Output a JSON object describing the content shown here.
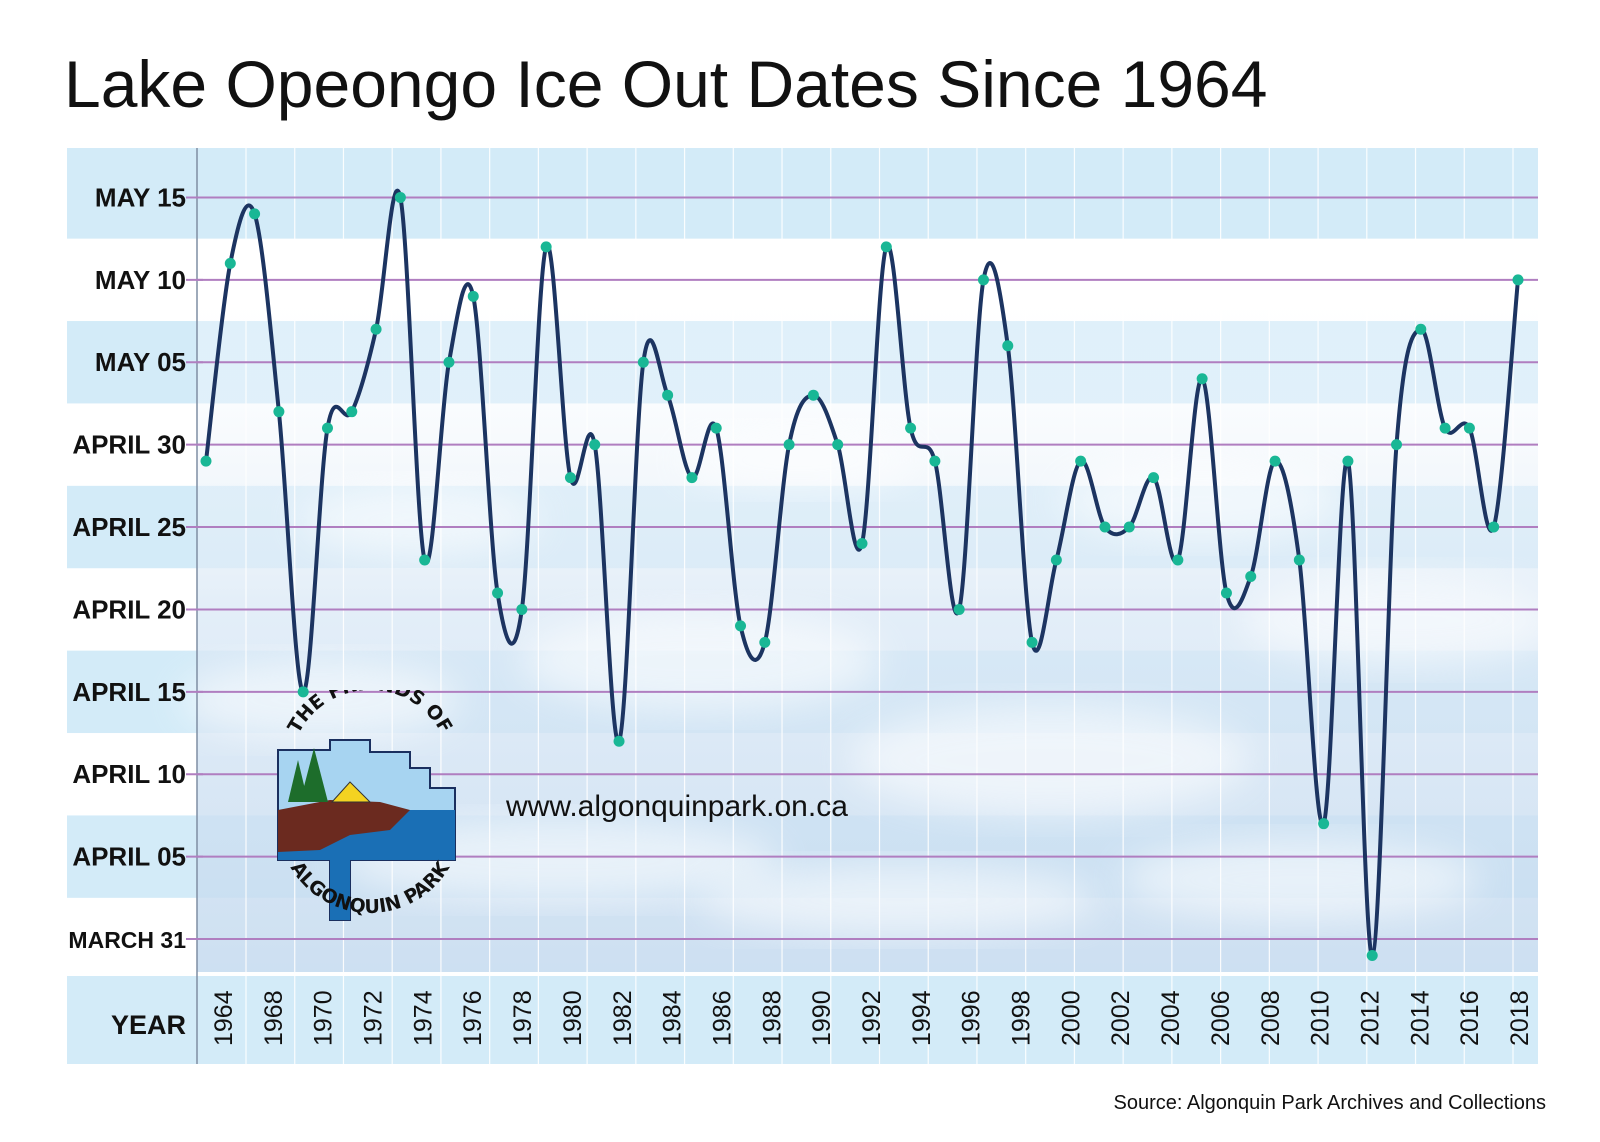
{
  "title": "Lake Opeongo Ice Out Dates Since 1964",
  "website": "www.algonquinpark.on.ca",
  "source": "Source: Algonquin Park Archives and Collections",
  "logo": {
    "top_text": "THE FRIENDS OF",
    "bottom_text": "ALGONQUIN PARK"
  },
  "colors": {
    "line": "#1c3461",
    "marker": "#19b795",
    "gridline": "#b07ec0",
    "band": "#d3ebf8",
    "axis_text": "#111111"
  },
  "chart_data": {
    "type": "line",
    "title": "Lake Opeongo Ice Out Dates Since 1964",
    "xlabel": "YEAR",
    "ylabel": "",
    "x_tick_labels": [
      "1964",
      "1968",
      "1970",
      "1972",
      "1974",
      "1976",
      "1978",
      "1980",
      "1982",
      "1984",
      "1986",
      "1988",
      "1990",
      "1992",
      "1994",
      "1996",
      "1998",
      "2000",
      "2002",
      "2004",
      "2006",
      "2008",
      "2010",
      "2012",
      "2014",
      "2016",
      "2018"
    ],
    "y_tick_labels": [
      "MAY 15",
      "MAY 10",
      "MAY 05",
      "APRIL 30",
      "APRIL 25",
      "APRIL 20",
      "APRIL 15",
      "APRIL 10",
      "APRIL 05",
      "MARCH 31"
    ],
    "y_ticks": [
      "05-15",
      "05-10",
      "05-05",
      "04-30",
      "04-25",
      "04-20",
      "04-15",
      "04-10",
      "04-05",
      "03-31"
    ],
    "ylim": [
      "03-29",
      "05-18"
    ],
    "grid": true,
    "series": [
      {
        "x": [
          1964,
          1965,
          1966,
          1967,
          1968,
          1969,
          1970,
          1971,
          1972,
          1973,
          1974,
          1975,
          1976,
          1977,
          1978,
          1979,
          1980,
          1981,
          1982,
          1983,
          1984,
          1985,
          1986,
          1987,
          1988,
          1989,
          1990,
          1991,
          1992,
          1993,
          1994,
          1995,
          1996,
          1997,
          1998,
          1999,
          2000,
          2001,
          2002,
          2003,
          2004,
          2005,
          2006,
          2007,
          2008,
          2009,
          2010,
          2011,
          2012,
          2013,
          2014,
          2015,
          2016,
          2017,
          2018
        ],
        "y": [
          "04-29",
          "05-11",
          "05-14",
          "05-02",
          "04-15",
          "05-01",
          "05-02",
          "05-07",
          "05-15",
          "04-23",
          "05-05",
          "05-09",
          "04-21",
          "04-20",
          "05-12",
          "04-28",
          "04-30",
          "04-12",
          "05-05",
          "05-03",
          "04-28",
          "05-01",
          "04-19",
          "04-18",
          "04-30",
          "05-03",
          "04-30",
          "04-24",
          "05-12",
          "05-01",
          "04-29",
          "04-20",
          "05-10",
          "05-06",
          "04-18",
          "04-23",
          "04-29",
          "04-25",
          "04-25",
          "04-28",
          "04-23",
          "05-04",
          "04-21",
          "04-22",
          "04-29",
          "04-23",
          "04-07",
          "04-29",
          "03-30",
          "04-30",
          "05-07",
          "05-01",
          "05-01",
          "04-25",
          "05-10"
        ]
      }
    ]
  }
}
